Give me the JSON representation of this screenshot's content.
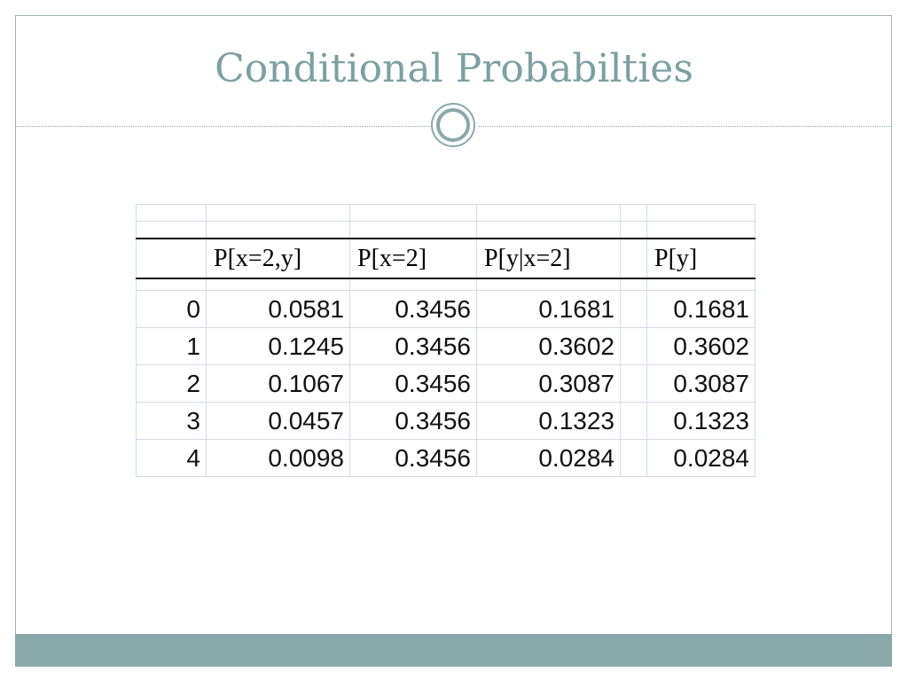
{
  "slide": {
    "title": "Conditional Probabilties"
  },
  "table": {
    "headers": [
      "",
      "P[x=2,y]",
      "P[x=2]",
      "P[y|x=2]",
      "",
      "P[y]"
    ],
    "rows": [
      [
        "0",
        "0.0581",
        "0.3456",
        "0.1681",
        "",
        "0.1681"
      ],
      [
        "1",
        "0.1245",
        "0.3456",
        "0.3602",
        "",
        "0.3602"
      ],
      [
        "2",
        "0.1067",
        "0.3456",
        "0.3087",
        "",
        "0.3087"
      ],
      [
        "3",
        "0.0457",
        "0.3456",
        "0.1323",
        "",
        "0.1323"
      ],
      [
        "4",
        "0.0098",
        "0.3456",
        "0.0284",
        "",
        "0.0284"
      ]
    ]
  },
  "colors": {
    "accent": "#8aa8aa",
    "title": "#7d9fa1"
  }
}
